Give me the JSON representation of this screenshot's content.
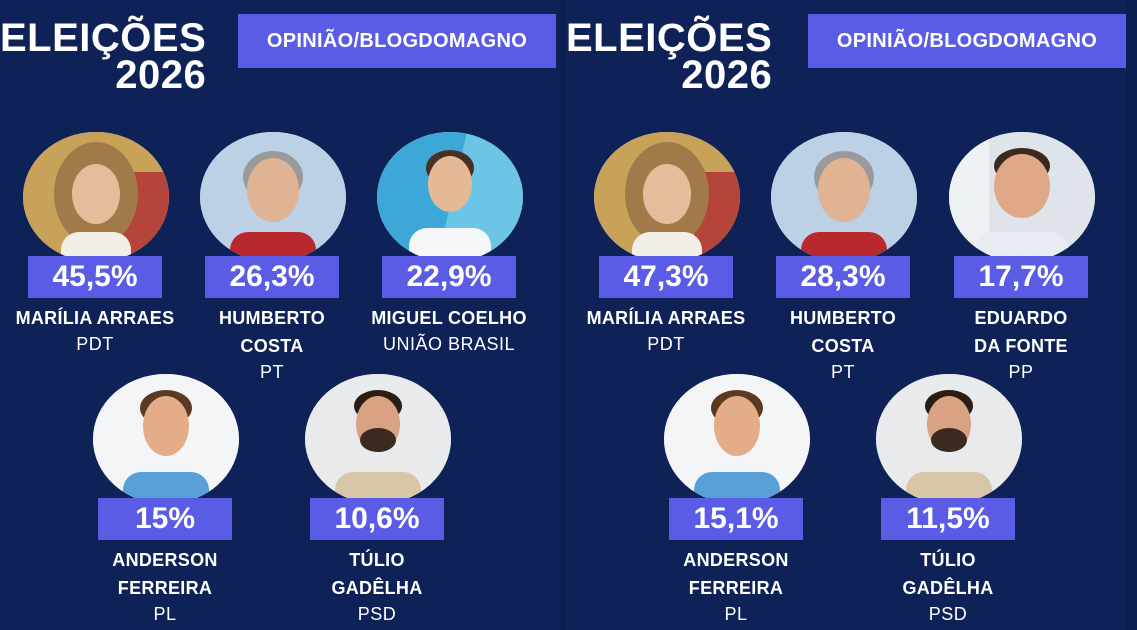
{
  "panels": [
    {
      "title_line1": "ELEIÇÕES",
      "title_line2": "2026",
      "source": "OPINIÃO/BLOGDOMAGNO",
      "candidates": [
        {
          "percent": "45,5%",
          "name_line1": "MARÍLIA ARRAES",
          "name_line2": "",
          "party": "PDT"
        },
        {
          "percent": "26,3%",
          "name_line1": "HUMBERTO",
          "name_line2": "COSTA",
          "party": "PT"
        },
        {
          "percent": "22,9%",
          "name_line1": "MIGUEL COELHO",
          "name_line2": "",
          "party": "UNIÃO BRASIL"
        },
        {
          "percent": "15%",
          "name_line1": "ANDERSON",
          "name_line2": "FERREIRA",
          "party": "PL"
        },
        {
          "percent": "10,6%",
          "name_line1": "TÚLIO",
          "name_line2": "GADÊLHA",
          "party": "PSD"
        }
      ]
    },
    {
      "title_line1": "ELEIÇÕES",
      "title_line2": "2026",
      "source": "OPINIÃO/BLOGDOMAGNO",
      "candidates": [
        {
          "percent": "47,3%",
          "name_line1": "MARÍLIA ARRAES",
          "name_line2": "",
          "party": "PDT"
        },
        {
          "percent": "28,3%",
          "name_line1": "HUMBERTO",
          "name_line2": "COSTA",
          "party": "PT"
        },
        {
          "percent": "17,7%",
          "name_line1": "EDUARDO",
          "name_line2": "DA FONTE",
          "party": "PP"
        },
        {
          "percent": "15,1%",
          "name_line1": "ANDERSON",
          "name_line2": "FERREIRA",
          "party": "PL"
        },
        {
          "percent": "11,5%",
          "name_line1": "TÚLIO",
          "name_line2": "GADÊLHA",
          "party": "PSD"
        }
      ]
    }
  ],
  "colors": {
    "background": "#0e2258",
    "accent": "#5b5ce6",
    "text": "#ffffff"
  }
}
